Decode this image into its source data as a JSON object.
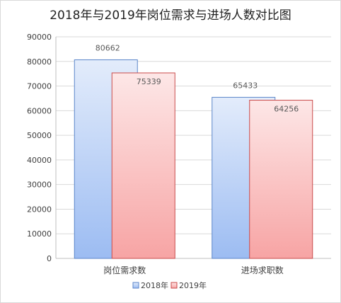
{
  "chart_data": {
    "type": "bar",
    "title": "2018年与2019年岗位需求与进场人数对比图",
    "categories": [
      "岗位需求数",
      "进场求职数"
    ],
    "series": [
      {
        "name": "2018年",
        "values": [
          80662,
          65433
        ],
        "color_top": "#e3ecfb",
        "color_bottom": "#9cbcf2",
        "stroke": "#5b86c9"
      },
      {
        "name": "2019年",
        "values": [
          75339,
          64256
        ],
        "color_top": "#fde7e7",
        "color_bottom": "#f7a4a4",
        "stroke": "#c94b4b"
      }
    ],
    "yticks": [
      0,
      10000,
      20000,
      30000,
      40000,
      50000,
      60000,
      70000,
      80000,
      90000
    ],
    "ylim": [
      0,
      90000
    ],
    "grid": true,
    "legend": "bottom",
    "xlabel": "",
    "ylabel": ""
  }
}
